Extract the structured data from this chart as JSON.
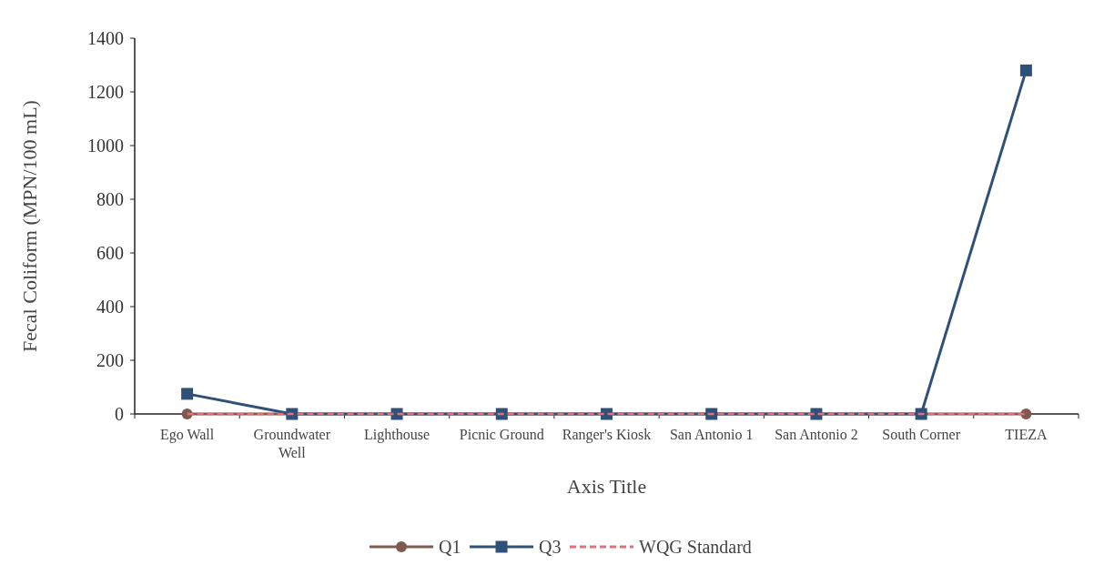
{
  "chart_data": {
    "type": "line",
    "xlabel": "Axis Title",
    "ylabel": "Fecal Coliform (MPN/100 mL)",
    "categories": [
      "Ego Wall",
      "Groundwater Well",
      "Lighthouse",
      "Picnic Ground",
      "Ranger's Kiosk",
      "San Antonio 1",
      "San Antonio 2",
      "South Corner",
      "TIEZA"
    ],
    "series": [
      {
        "name": "Q1",
        "color": "#7f5a50",
        "marker": "circle",
        "line_style": "solid",
        "values": [
          0,
          0,
          0,
          0,
          0,
          0,
          0,
          0,
          0
        ]
      },
      {
        "name": "Q3",
        "color": "#2f5079",
        "marker": "square",
        "line_style": "solid",
        "values": [
          75,
          0,
          0,
          0,
          0,
          0,
          0,
          0,
          1280
        ]
      },
      {
        "name": "WQG Standard",
        "color": "#e0707a",
        "marker": "none",
        "line_style": "dashed",
        "values": [
          0,
          0,
          0,
          0,
          0,
          0,
          0,
          0,
          0
        ]
      }
    ],
    "ylim": [
      0,
      1400
    ],
    "yticks": [
      0,
      200,
      400,
      600,
      800,
      1000,
      1200,
      1400
    ],
    "grid": false,
    "legend": "bottom"
  }
}
